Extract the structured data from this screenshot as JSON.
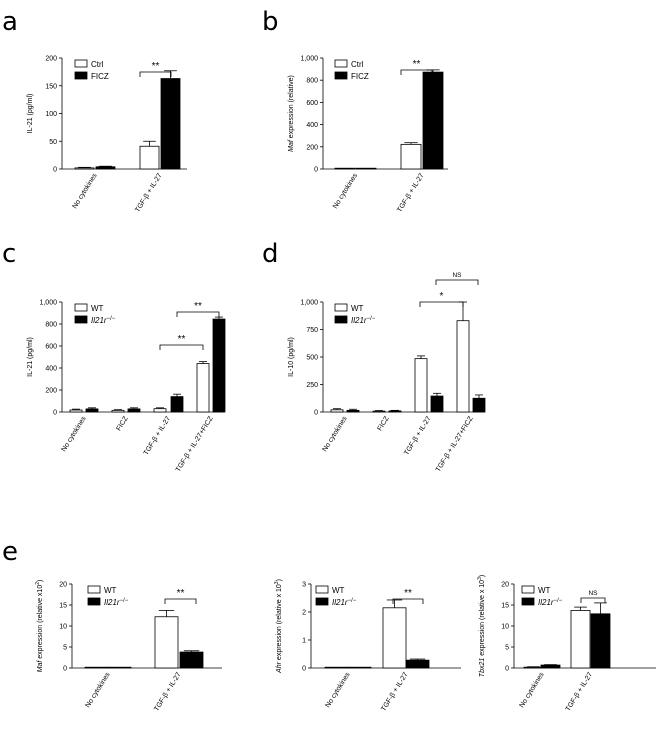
{
  "figure": {
    "panels": [
      "a",
      "b",
      "c",
      "d",
      "e"
    ]
  },
  "colors": {
    "ctrl": "#ffffff",
    "treated": "#000000",
    "axis": "#000000"
  },
  "chart_data": [
    {
      "panel": "a",
      "type": "bar",
      "ylabel": "IL-21 (pg/ml)",
      "ylim": [
        0,
        200
      ],
      "yticks": [
        "0",
        "50",
        "100",
        "150",
        "200"
      ],
      "categories": [
        "No cytokines",
        "TGF-β + IL-27"
      ],
      "series": [
        {
          "name": "Ctrl",
          "values": [
            2,
            41
          ],
          "errors": [
            1,
            9
          ]
        },
        {
          "name": "FICZ",
          "values": [
            4,
            163
          ],
          "errors": [
            1,
            14
          ]
        }
      ],
      "annotations": [
        {
          "label": "**"
        }
      ]
    },
    {
      "panel": "b",
      "type": "bar",
      "ylabel_italic": "Maf",
      "ylabel": " expression (relative)",
      "ylim": [
        0,
        1000
      ],
      "yticks": [
        "0",
        "200",
        "400",
        "600",
        "800",
        "1,000"
      ],
      "categories": [
        "No cytokines",
        "TGF-β + IL-27"
      ],
      "series": [
        {
          "name": "Ctrl",
          "values": [
            2,
            222
          ],
          "errors": [
            1,
            15
          ]
        },
        {
          "name": "FICZ",
          "values": [
            3,
            873
          ],
          "errors": [
            1,
            20
          ]
        }
      ],
      "annotations": [
        {
          "label": "**"
        }
      ]
    },
    {
      "panel": "c",
      "type": "bar",
      "ylabel": "IL-21 (pg/ml)",
      "ylim": [
        0,
        1000
      ],
      "yticks": [
        "0",
        "200",
        "400",
        "600",
        "800",
        "1,000"
      ],
      "categories": [
        "No cytokines",
        "FICZ",
        "TGF-β + IL-27",
        "TGF-β + IL-27+FICZ"
      ],
      "series": [
        {
          "name": "WT",
          "values": [
            18,
            15,
            30,
            440
          ],
          "errors": [
            8,
            6,
            8,
            18
          ]
        },
        {
          "name": "Il21r−/−",
          "values": [
            28,
            28,
            140,
            845
          ],
          "errors": [
            10,
            10,
            22,
            18
          ]
        }
      ],
      "annotations": [
        {
          "label": "**"
        },
        {
          "label": "**"
        }
      ]
    },
    {
      "panel": "d",
      "type": "bar",
      "ylabel": "IL-10 (pg/ml)",
      "ylim": [
        0,
        1000
      ],
      "yticks": [
        "0",
        "250",
        "500",
        "750",
        "1,000"
      ],
      "categories": [
        "No cytokines",
        "FICZ",
        "TGF-β + IL-27",
        "TGF-β + IL-27+FICZ"
      ],
      "series": [
        {
          "name": "WT",
          "values": [
            20,
            8,
            485,
            830
          ],
          "errors": [
            10,
            5,
            25,
            170
          ]
        },
        {
          "name": "Il21r−/−",
          "values": [
            15,
            10,
            145,
            125
          ],
          "errors": [
            10,
            5,
            25,
            30
          ]
        }
      ],
      "annotations": [
        {
          "label": "*"
        },
        {
          "label": "NS"
        }
      ]
    },
    {
      "panel": "e1",
      "type": "bar",
      "ylabel_italic": "Maf",
      "ylabel": " expression  (relative x10",
      "ylabel_sup": "2",
      "ylabel_end": ")",
      "ylim": [
        0,
        20
      ],
      "yticks": [
        "0",
        "5",
        "10",
        "15",
        "20"
      ],
      "categories": [
        "No cytokines",
        "TGF-β + IL-27"
      ],
      "series": [
        {
          "name": "WT",
          "values": [
            0,
            12.2
          ],
          "errors": [
            0,
            1.5
          ]
        },
        {
          "name": "Il21r−/−",
          "values": [
            0,
            3.8
          ],
          "errors": [
            0,
            0.3
          ]
        }
      ],
      "annotations": [
        {
          "label": "**"
        }
      ]
    },
    {
      "panel": "e2",
      "type": "bar",
      "ylabel_italic": "Ahr",
      "ylabel": " expression (relative x 10",
      "ylabel_sup": "3",
      "ylabel_end": ")",
      "ylim": [
        0,
        3
      ],
      "yticks": [
        "0",
        "1",
        "2",
        "3"
      ],
      "categories": [
        "No cytokines",
        "TGF-β + IL-27"
      ],
      "series": [
        {
          "name": "WT",
          "values": [
            0,
            2.15
          ],
          "errors": [
            0,
            0.28
          ]
        },
        {
          "name": "Il21r−/−",
          "values": [
            0,
            0.28
          ],
          "errors": [
            0,
            0.04
          ]
        }
      ],
      "annotations": [
        {
          "label": "**"
        }
      ]
    },
    {
      "panel": "e3",
      "type": "bar",
      "ylabel_italic": "Tbx21",
      "ylabel": " expression (relative x 10",
      "ylabel_sup": "3",
      "ylabel_end": ")",
      "ylim": [
        0,
        20
      ],
      "yticks": [
        "0",
        "5",
        "10",
        "15",
        "20"
      ],
      "categories": [
        "No cytokines",
        "TGF-β + IL-27"
      ],
      "series": [
        {
          "name": "WT",
          "values": [
            0.2,
            13.7
          ],
          "errors": [
            0.1,
            0.8
          ]
        },
        {
          "name": "Il21r−/−",
          "values": [
            0.7,
            12.9
          ],
          "errors": [
            0.1,
            2.6
          ]
        }
      ],
      "annotations": [
        {
          "label": "NS"
        }
      ]
    }
  ]
}
